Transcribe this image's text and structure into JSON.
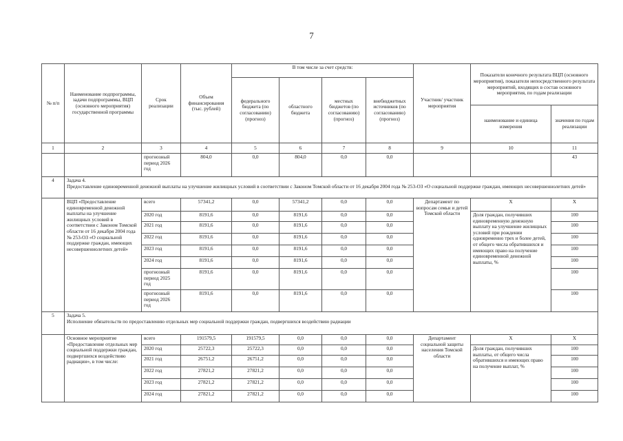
{
  "page_number": "7",
  "header": {
    "col_no": "№ п/п",
    "col_name": "Наименование подпрограммы, задачи подпрограммы, ВЦП (основного мероприятия) государственной программы",
    "col_term": "Срок реализации",
    "col_volume": "Объем финансирования (тыс. рублей)",
    "group_sources": "В том числе за счет средств:",
    "col_federal": "федерального бюджета (по согласованию) (прогноз)",
    "col_regional": "областного бюджета",
    "col_local": "местных бюджетов (по согласованию) (прогноз)",
    "col_extra": "внебюджетных источников (по согласованию) (прогноз)",
    "col_participant": "Участник/ участник мероприятия",
    "group_indicators": "Показатели конечного результата ВЦП (основного мероприятия), показатели непосредственного результата мероприятий, входящих в состав основного мероприятия, по годам реализации",
    "col_indicator_name": "наименование и единица измерения",
    "col_indicator_values": "значения по годам реализации",
    "numbers": [
      "1",
      "2",
      "3",
      "4",
      "5",
      "6",
      "7",
      "8",
      "9",
      "10",
      "11"
    ]
  },
  "carry_row": {
    "period": "прогнозный период 2026 год",
    "c4": "804,0",
    "c5": "0,0",
    "c6": "804,0",
    "c7": "0,0",
    "c8": "0,0",
    "c11": "43"
  },
  "blocks": [
    {
      "task_no": "4",
      "task_title": "Задача 4.",
      "task_text": "Предоставление единовременной денежной выплаты на улучшение жилищных условий в соответствии с Законом Томской области от 16 декабря 2004 года № 253-ОЗ «О социальной поддержке граждан, имеющих несовершеннолетних детей»",
      "name": "ВЦП «Предоставление единовременной денежной выплаты на улучшение жилищных условий в соответствии с Законом Томской области от 16 декабря 2004 года № 253-ОЗ «О социальной поддержке граждан, имеющих несовершеннолетних детей»",
      "participant": "Департамент по вопросам семьи и детей Томской области",
      "indicator_header": "X",
      "indicator_value_header": "X",
      "indicator": "Доля граждан, получивших единовременную денежную выплату на улучшение жилищных условий при рождении одновременно трех и более детей, от общего числа обратившихся и имеющих право на получение единовременной денежной выплаты, %",
      "rows": [
        {
          "period": "всего",
          "c4": "57341,2",
          "c5": "0,0",
          "c6": "57341,2",
          "c7": "0,0",
          "c8": "0,0",
          "c11": ""
        },
        {
          "period": "2020 год",
          "c4": "8191,6",
          "c5": "0,0",
          "c6": "8191,6",
          "c7": "0,0",
          "c8": "0,0",
          "c11": "100"
        },
        {
          "period": "2021 год",
          "c4": "8191,6",
          "c5": "0,0",
          "c6": "8191,6",
          "c7": "0,0",
          "c8": "0,0",
          "c11": "100"
        },
        {
          "period": "2022 год",
          "c4": "8191,6",
          "c5": "0,0",
          "c6": "8191,6",
          "c7": "0,0",
          "c8": "0,0",
          "c11": "100"
        },
        {
          "period": "2023 год",
          "c4": "8191,6",
          "c5": "0,0",
          "c6": "8191,6",
          "c7": "0,0",
          "c8": "0,0",
          "c11": "100"
        },
        {
          "period": "2024 год",
          "c4": "8191,6",
          "c5": "0,0",
          "c6": "8191,6",
          "c7": "0,0",
          "c8": "0,0",
          "c11": "100"
        },
        {
          "period": "прогнозный период 2025 год",
          "c4": "8191,6",
          "c5": "0,0",
          "c6": "8191,6",
          "c7": "0,0",
          "c8": "0,0",
          "c11": "100"
        },
        {
          "period": "прогнозный период 2026 год",
          "c4": "8191,6",
          "c5": "0,0",
          "c6": "8191,6",
          "c7": "0,0",
          "c8": "0,0",
          "c11": "100"
        }
      ]
    },
    {
      "task_no": "5",
      "task_title": "Задача 5.",
      "task_text": "Исполнение обязательств по предоставлению отдельных мер социальной поддержки граждан, подвергшихся воздействию радиации",
      "name": "Основное мероприятие «Предоставление отдельных мер социальной поддержки граждан, подвергшихся воздействию радиации», в том числе:",
      "participant": "Департамент социальной защиты населения Томской области",
      "indicator_header": "X",
      "indicator_value_header": "X",
      "indicator": "Доля граждан, получивших выплаты, от общего числа обратившихся и имеющих право на получение выплат, %",
      "rows": [
        {
          "period": "всего",
          "c4": "191579,5",
          "c5": "191579,5",
          "c6": "0,0",
          "c7": "0,0",
          "c8": "0,0",
          "c11": ""
        },
        {
          "period": "2020 год",
          "c4": "25722,3",
          "c5": "25722,3",
          "c6": "0,0",
          "c7": "0,0",
          "c8": "0,0",
          "c11": "100"
        },
        {
          "period": "2021 год",
          "c4": "26751,2",
          "c5": "26751,2",
          "c6": "0,0",
          "c7": "0,0",
          "c8": "0,0",
          "c11": "100"
        },
        {
          "period": "2022 год",
          "c4": "27821,2",
          "c5": "27821,2",
          "c6": "0,0",
          "c7": "0,0",
          "c8": "0,0",
          "c11": "100"
        },
        {
          "period": "2023 год",
          "c4": "27821,2",
          "c5": "27821,2",
          "c6": "0,0",
          "c7": "0,0",
          "c8": "0,0",
          "c11": "100"
        },
        {
          "period": "2024 год",
          "c4": "27821,2",
          "c5": "27821,2",
          "c6": "0,0",
          "c7": "0,0",
          "c8": "0,0",
          "c11": "100"
        }
      ]
    }
  ]
}
